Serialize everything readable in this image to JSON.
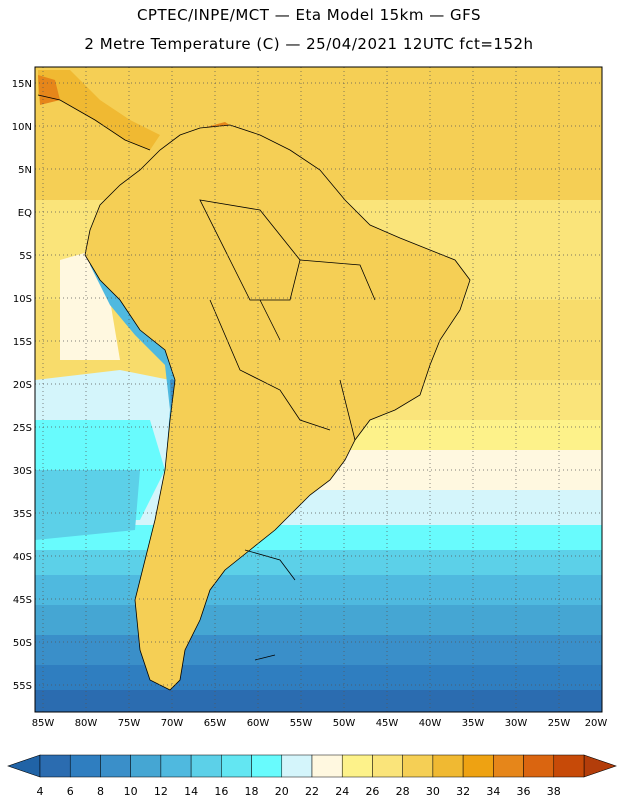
{
  "header": {
    "title_line1": "CPTEC/INPE/MCT —  Eta Model 15km — GFS",
    "title_line2": "2 Metre Temperature (C) — 25/04/2021 12UTC fct=152h"
  },
  "map": {
    "lat_labels": [
      "15N",
      "10N",
      "5N",
      "EQ",
      "5S",
      "10S",
      "15S",
      "20S",
      "25S",
      "30S",
      "35S",
      "40S",
      "45S",
      "50S",
      "55S"
    ],
    "lon_labels": [
      "85W",
      "80W",
      "75W",
      "70W",
      "65W",
      "60W",
      "55W",
      "50W",
      "45W",
      "40W",
      "35W",
      "30W",
      "25W",
      "20W"
    ]
  },
  "colorbar": {
    "labels": [
      "4",
      "6",
      "8",
      "10",
      "12",
      "14",
      "16",
      "18",
      "20",
      "22",
      "24",
      "26",
      "28",
      "30",
      "32",
      "34",
      "36",
      "38"
    ],
    "colors": [
      "#2b6cb0",
      "#2f7ec0",
      "#3a8fc9",
      "#45a6d3",
      "#4fb9df",
      "#5cd0e8",
      "#63e6f2",
      "#68fbfd",
      "#d4f5fb",
      "#fff8e0",
      "#fdf28a",
      "#fae47a",
      "#f5cf55",
      "#f0b932",
      "#eea212",
      "#e6861a",
      "#da6510",
      "#c74a08"
    ],
    "under_color": "#2063a6",
    "over_color": "#b33d0a"
  }
}
